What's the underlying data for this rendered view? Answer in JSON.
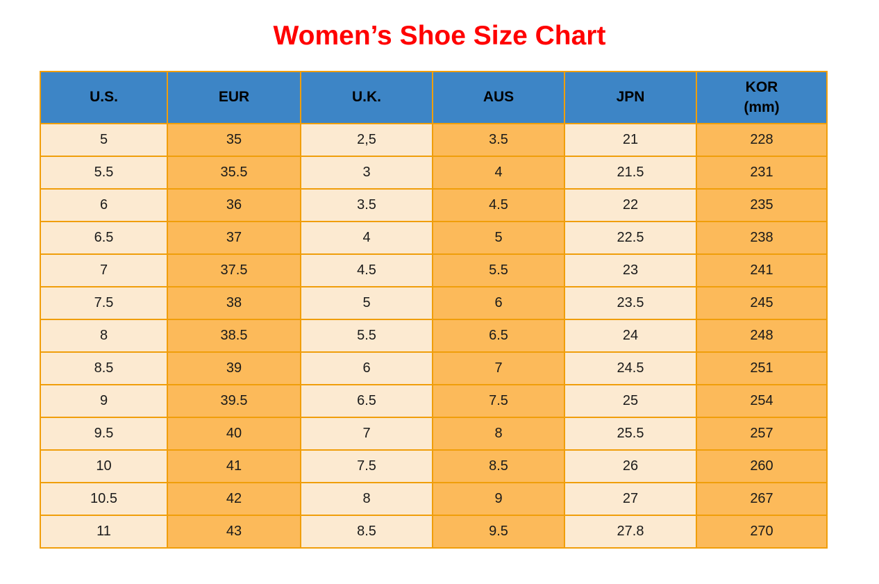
{
  "title": "Women’s Shoe Size Chart",
  "colors": {
    "title_red": "#FF0000",
    "header_blue": "#3D85C6",
    "header_text": "#000000",
    "column_cream": "#FCEAD1",
    "column_orange": "#FCBA5A",
    "grid_border": "#F09E0A",
    "cell_text": "#1A1A1A"
  },
  "table": {
    "display_headers": [
      "U.S.",
      "EUR",
      "U.K.",
      "AUS",
      "JPN",
      "KOR\n(mm)"
    ]
  },
  "chart_data": {
    "type": "table",
    "title": "Women’s Shoe Size Chart",
    "columns": [
      "U.S.",
      "EUR",
      "U.K.",
      "AUS",
      "JPN",
      "KOR (mm)"
    ],
    "rows": [
      [
        "5",
        "35",
        "2,5",
        "3.5",
        "21",
        "228"
      ],
      [
        "5.5",
        "35.5",
        "3",
        "4",
        "21.5",
        "231"
      ],
      [
        "6",
        "36",
        "3.5",
        "4.5",
        "22",
        "235"
      ],
      [
        "6.5",
        "37",
        "4",
        "5",
        "22.5",
        "238"
      ],
      [
        "7",
        "37.5",
        "4.5",
        "5.5",
        "23",
        "241"
      ],
      [
        "7.5",
        "38",
        "5",
        "6",
        "23.5",
        "245"
      ],
      [
        "8",
        "38.5",
        "5.5",
        "6.5",
        "24",
        "248"
      ],
      [
        "8.5",
        "39",
        "6",
        "7",
        "24.5",
        "251"
      ],
      [
        "9",
        "39.5",
        "6.5",
        "7.5",
        "25",
        "254"
      ],
      [
        "9.5",
        "40",
        "7",
        "8",
        "25.5",
        "257"
      ],
      [
        "10",
        "41",
        "7.5",
        "8.5",
        "26",
        "260"
      ],
      [
        "10.5",
        "42",
        "8",
        "9",
        "27",
        "267"
      ],
      [
        "11",
        "43",
        "8.5",
        "9.5",
        "27.8",
        "270"
      ]
    ],
    "layout": {
      "column_fill_pattern": [
        "cream",
        "orange",
        "cream",
        "orange",
        "cream",
        "orange"
      ],
      "header_fill": "blue",
      "grid": "on"
    }
  }
}
